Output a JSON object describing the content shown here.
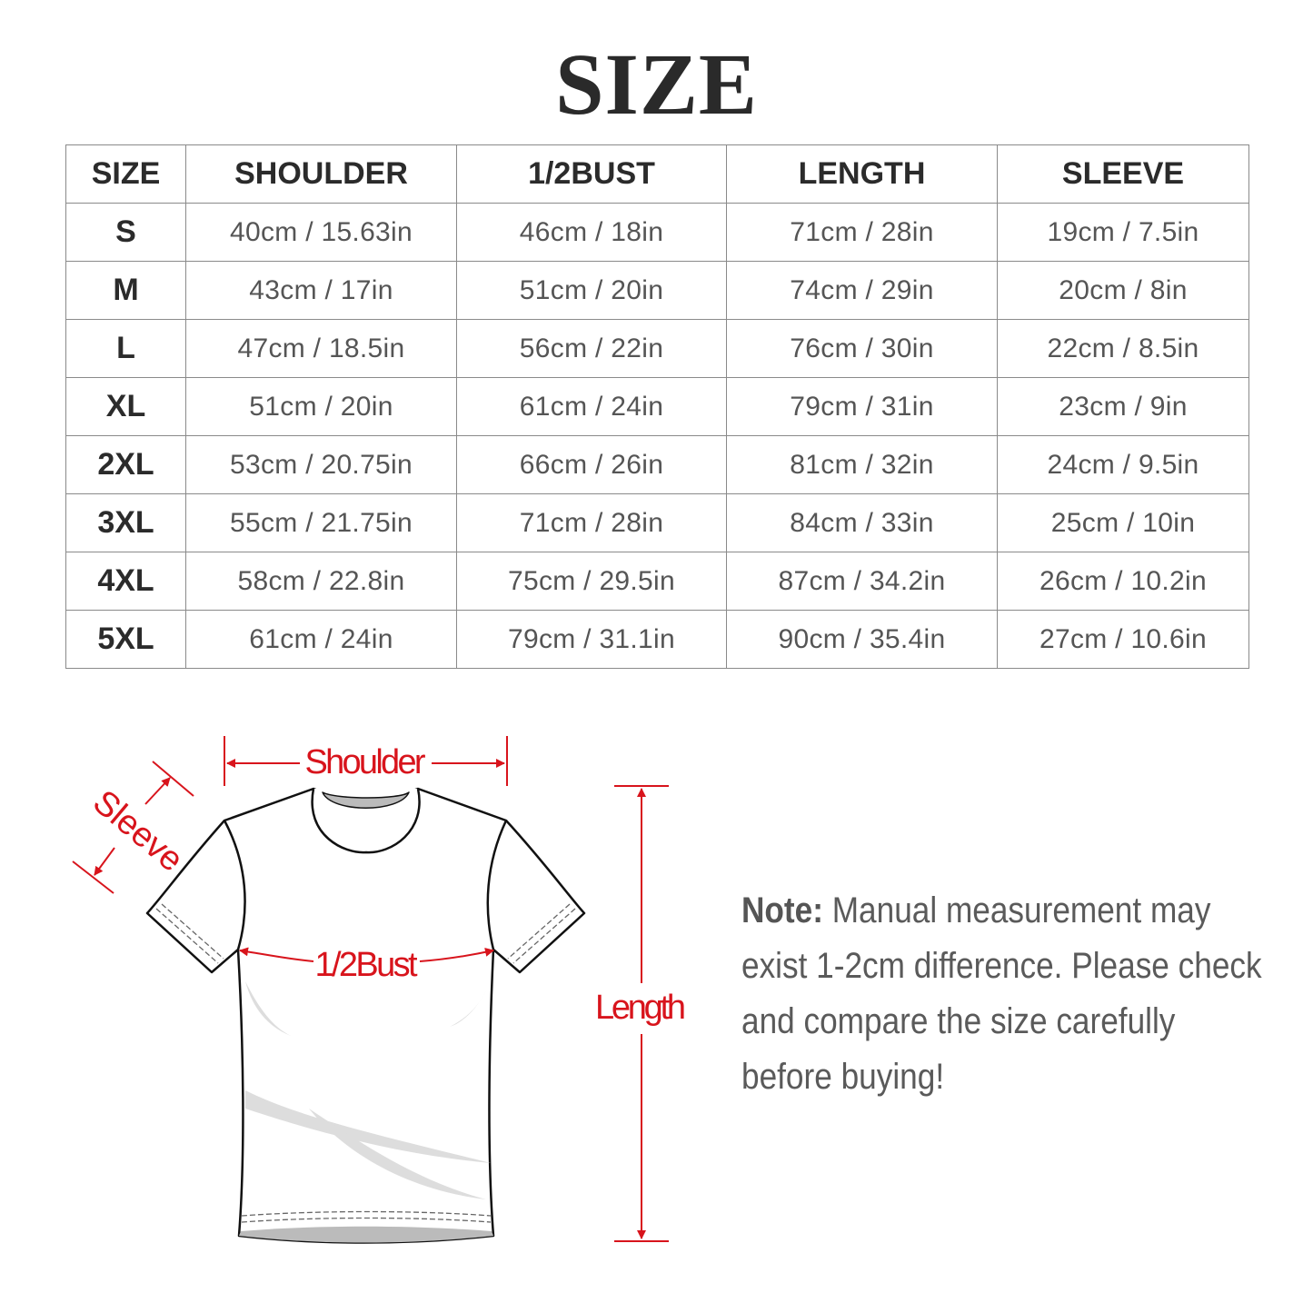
{
  "title": "SIZE",
  "table": {
    "headers": [
      "SIZE",
      "SHOULDER",
      "1/2BUST",
      "LENGTH",
      "SLEEVE"
    ],
    "rows": [
      [
        "S",
        "40cm / 15.63in",
        "46cm / 18in",
        "71cm / 28in",
        "19cm / 7.5in"
      ],
      [
        "M",
        "43cm / 17in",
        "51cm / 20in",
        "74cm / 29in",
        "20cm / 8in"
      ],
      [
        "L",
        "47cm / 18.5in",
        "56cm / 22in",
        "76cm / 30in",
        "22cm / 8.5in"
      ],
      [
        "XL",
        "51cm / 20in",
        "61cm / 24in",
        "79cm / 31in",
        "23cm / 9in"
      ],
      [
        "2XL",
        "53cm / 20.75in",
        "66cm / 26in",
        "81cm / 32in",
        "24cm / 9.5in"
      ],
      [
        "3XL",
        "55cm / 21.75in",
        "71cm / 28in",
        "84cm / 33in",
        "25cm / 10in"
      ],
      [
        "4XL",
        "58cm / 22.8in",
        "75cm / 29.5in",
        "87cm / 34.2in",
        "26cm / 10.2in"
      ],
      [
        "5XL",
        "61cm / 24in",
        "79cm / 31.1in",
        "90cm / 35.4in",
        "27cm / 10.6in"
      ]
    ]
  },
  "diagram": {
    "labels": {
      "shoulder": "Shoulder",
      "sleeve": "Sleeve",
      "bust": "1/2Bust",
      "length": "Length"
    },
    "accent_color": "#d8141c"
  },
  "note": {
    "prefix": "Note:",
    "text": " Manual measurement may exist 1-2cm difference. Please check and compare the size carefully before buying!"
  }
}
